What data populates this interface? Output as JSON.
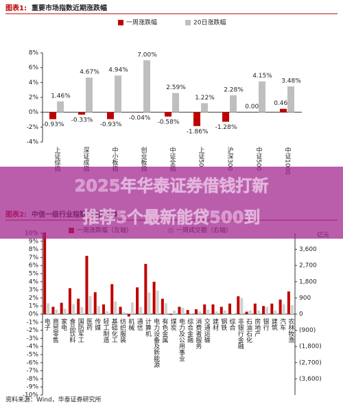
{
  "chart_data": [
    {
      "type": "bar",
      "label": "图表1:",
      "title": "重要市场指数近期涨跌幅",
      "categories": [
        "上证综指",
        "深证成指",
        "中小板指",
        "创业板指",
        "中证全指",
        "上证50",
        "沪深300",
        "中证500",
        "中证1000"
      ],
      "series": [
        {
          "name": "一周涨跌幅",
          "color": "#c00000",
          "values": [
            -0.93,
            -0.33,
            -0.93,
            -0.04,
            -0.58,
            -1.86,
            -1.28,
            0.0,
            0.46
          ],
          "value_labels": [
            "-0.93%",
            "-0.33%",
            "-0.93%",
            "-0.04%",
            "-0.58%",
            "-1.86%",
            "-1.28%",
            "0.00%",
            "0.46%"
          ]
        },
        {
          "name": "20日涨跌幅",
          "color": "#bfbfbf",
          "values": [
            1.46,
            4.67,
            4.94,
            7.0,
            2.59,
            1.22,
            2.28,
            4.15,
            3.48
          ],
          "value_labels": [
            "1.46%",
            "4.67%",
            "4.94%",
            "7.00%",
            "2.59%",
            "1.22%",
            "2.28%",
            "4.15%",
            "3.48%"
          ]
        }
      ],
      "ylim": [
        -4,
        8
      ],
      "yticks": [
        {
          "value": -4,
          "label": "-4%"
        },
        {
          "value": -2,
          "label": "-2%"
        },
        {
          "value": 0,
          "label": "0%"
        },
        {
          "value": 2,
          "label": "2%"
        },
        {
          "value": 4,
          "label": "4%"
        },
        {
          "value": 6,
          "label": "6%"
        },
        {
          "value": 8,
          "label": "8%"
        }
      ]
    },
    {
      "type": "bar",
      "label": "图表2:",
      "title": "中信一级行业指数近期涨跌幅",
      "categories": [
        "电子",
        "商贸零售",
        "家电",
        "食品饮料",
        "国防军工",
        "医药",
        "传媒",
        "轻工制造",
        "基础化工",
        "纺织服装",
        "机械",
        "通信",
        "计算机",
        "电力设备及新能源",
        "有色金属",
        "煤炭",
        "电力及公用事业",
        "综合金融",
        "消费者服务",
        "交通运输",
        "建材",
        "钢铁",
        "综合",
        "非银行金融",
        "石油石化",
        "房地产",
        "银行",
        "建筑",
        "汽车",
        "农林牧渔"
      ],
      "series": [
        {
          "name": "一周涨跌幅（左轴）",
          "color": "#c00000",
          "values": [
            10.1,
            0.9,
            1.4,
            3.2,
            1.9,
            7.2,
            2.7,
            1.2,
            3.7,
            0.9,
            -0.3,
            3.3,
            6.2,
            4.0,
            1.9,
            -0.1,
            0.9,
            0.5,
            0.6,
            1.2,
            1.2,
            0.9,
            1.3,
            2.2,
            0.3,
            1.3,
            1.0,
            1.3,
            1.8,
            2.8
          ]
        },
        {
          "name": "一周成交额（右轴）",
          "color": "#d0d0d0",
          "axis": "y2",
          "values": [
            600,
            250,
            300,
            550,
            400,
            1000,
            450,
            150,
            700,
            100,
            650,
            400,
            1200,
            1300,
            600,
            200,
            350,
            50,
            150,
            250,
            150,
            200,
            20,
            900,
            200,
            200,
            400,
            200,
            550,
            500
          ]
        }
      ],
      "ylim": [
        -10,
        10
      ],
      "yticks": [
        {
          "value": -10,
          "label": "-10%"
        },
        {
          "value": -9,
          "label": "-9%"
        },
        {
          "value": -8,
          "label": "-8%"
        },
        {
          "value": -7,
          "label": "-7%"
        },
        {
          "value": -6,
          "label": "-6%"
        },
        {
          "value": -5,
          "label": "-5%"
        },
        {
          "value": -4,
          "label": "-4%"
        },
        {
          "value": -3,
          "label": "-3%"
        },
        {
          "value": -2,
          "label": "-2%"
        },
        {
          "value": -1,
          "label": "-1%"
        },
        {
          "value": 0,
          "label": "0%"
        },
        {
          "value": 1,
          "label": "1%"
        },
        {
          "value": 2,
          "label": "2%"
        },
        {
          "value": 3,
          "label": "3%"
        },
        {
          "value": 4,
          "label": "4%"
        },
        {
          "value": 5,
          "label": "5%"
        },
        {
          "value": 6,
          "label": "6%"
        },
        {
          "value": 7,
          "label": "7%"
        },
        {
          "value": 8,
          "label": "8%"
        },
        {
          "value": 9,
          "label": "9%"
        },
        {
          "value": 10,
          "label": "10%"
        }
      ],
      "y2lim": [
        -4500,
        4500
      ],
      "y2ticks": [
        {
          "value": -3600,
          "label": "(3,600)"
        },
        {
          "value": -2700,
          "label": "(2,700)"
        },
        {
          "value": -1800,
          "label": "(1,800)"
        },
        {
          "value": -900,
          "label": "(900)"
        },
        0,
        900,
        {
          "value": 1800,
          "label": "1,800"
        },
        {
          "value": 2700,
          "label": "2,700"
        },
        {
          "value": 3600,
          "label": "3,600"
        }
      ],
      "y2label": "亿元",
      "source": "资料来源：Wind，华泰证券研究所"
    }
  ],
  "overlay": {
    "lines": [
      "2025年华泰证券借钱打新",
      "推荐5个最新能贷500到"
    ]
  }
}
